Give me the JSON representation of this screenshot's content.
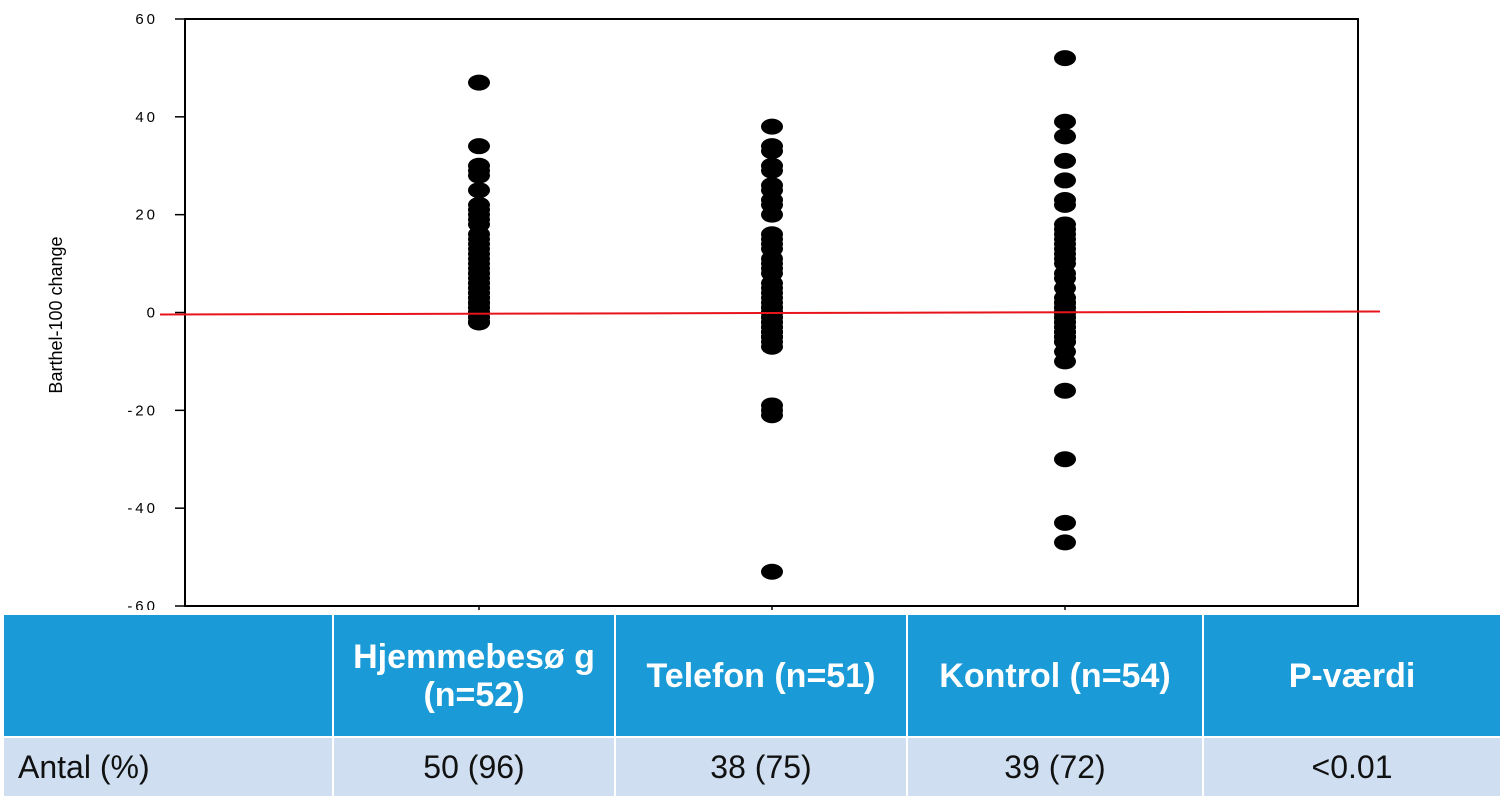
{
  "chart_data": {
    "type": "scatter",
    "ylabel": "Barthel-100 change",
    "ylim": [
      -60,
      60
    ],
    "yticks": [
      60,
      40,
      20,
      0,
      -20,
      -40,
      -60
    ],
    "ytick_labels": [
      "60",
      "40",
      "20",
      "0",
      "-20",
      "-40",
      "-60"
    ],
    "reference_line": {
      "y": 0,
      "color": "#e8141c"
    },
    "marker_color": "#000000",
    "groups": [
      {
        "values": [
          47,
          34,
          30,
          29,
          28,
          25,
          22,
          21,
          20,
          19,
          18,
          16,
          15,
          14,
          13,
          12,
          11,
          10,
          9,
          8,
          8,
          7,
          6,
          6,
          5,
          5,
          4,
          4,
          3,
          3,
          2,
          2,
          2,
          1,
          1,
          1,
          0,
          0,
          0,
          0,
          0,
          0,
          0,
          0,
          -1,
          -1,
          -1,
          -2,
          -2,
          -2,
          -2,
          -2
        ]
      },
      {
        "values": [
          38,
          34,
          33,
          30,
          29,
          26,
          25,
          23,
          22,
          20,
          16,
          15,
          14,
          13,
          11,
          10,
          9,
          8,
          6,
          5,
          4,
          3,
          2,
          1,
          1,
          0,
          0,
          0,
          0,
          0,
          0,
          0,
          0,
          0,
          -1,
          -1,
          -2,
          -2,
          -3,
          -3,
          -4,
          -4,
          -5,
          -5,
          -5,
          -6,
          -7,
          -19,
          -20,
          -21,
          -53
        ]
      },
      {
        "values": [
          52,
          39,
          36,
          31,
          27,
          23,
          22,
          18,
          17,
          16,
          15,
          14,
          13,
          12,
          11,
          10,
          8,
          7,
          5,
          3,
          2,
          2,
          1,
          1,
          0,
          0,
          0,
          0,
          0,
          0,
          0,
          0,
          0,
          0,
          -1,
          -1,
          -2,
          -2,
          -3,
          -3,
          -4,
          -4,
          -5,
          -5,
          -5,
          -6,
          -6,
          -8,
          -10,
          -16,
          -30,
          -43,
          -47,
          -1
        ]
      }
    ]
  },
  "table": {
    "headers": [
      "",
      "Hjemmebesø g (n=52)",
      "Telefon (n=51)",
      "Kontrol (n=54)",
      "P-værdi"
    ],
    "row": {
      "label": "Antal (%)",
      "values": [
        "50 (96)",
        "38 (75)",
        "39 (72)",
        "<0.01"
      ]
    }
  }
}
